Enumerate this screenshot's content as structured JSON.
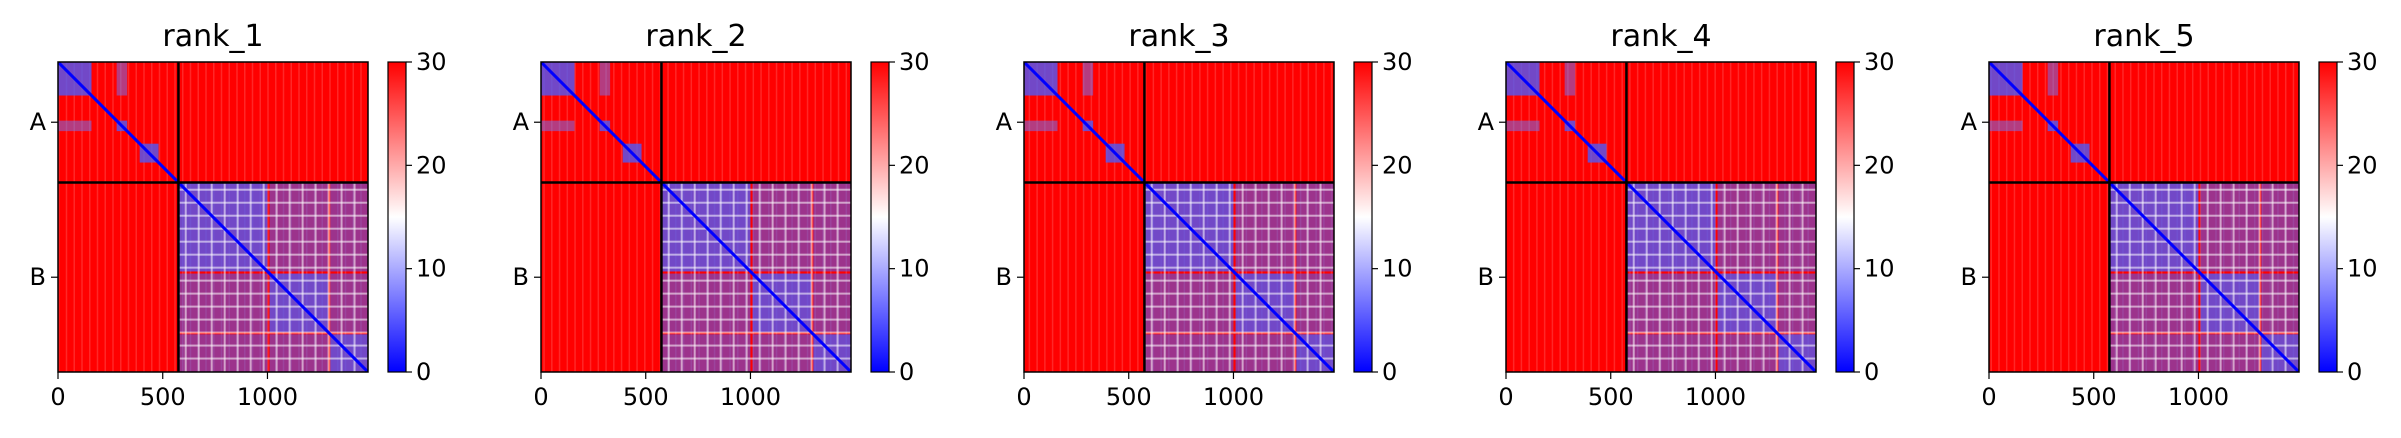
{
  "chart_data": {
    "type": "heatmap",
    "colormap": [
      "#0000ff",
      "#ffffff",
      "#ff0000"
    ],
    "xlim": [
      0,
      1480
    ],
    "chain_boundary": 575,
    "row_labels": [
      "A",
      "B"
    ],
    "x_ticks": [
      0,
      500,
      1000
    ],
    "x_tick_labels": [
      "0",
      "500",
      "1000"
    ],
    "colorbar": {
      "range": [
        0,
        30
      ],
      "ticks": [
        0,
        10,
        20,
        30
      ],
      "tick_labels": [
        "0",
        "10",
        "20",
        "30"
      ]
    },
    "domains": [
      [
        0,
        160
      ],
      [
        280,
        330
      ],
      [
        390,
        480
      ],
      [
        575,
        1000
      ],
      [
        1010,
        1290
      ],
      [
        1300,
        1480
      ]
    ],
    "panels": [
      {
        "title": "rank_1"
      },
      {
        "title": "rank_2"
      },
      {
        "title": "rank_3"
      },
      {
        "title": "rank_4"
      },
      {
        "title": "rank_5"
      }
    ]
  }
}
